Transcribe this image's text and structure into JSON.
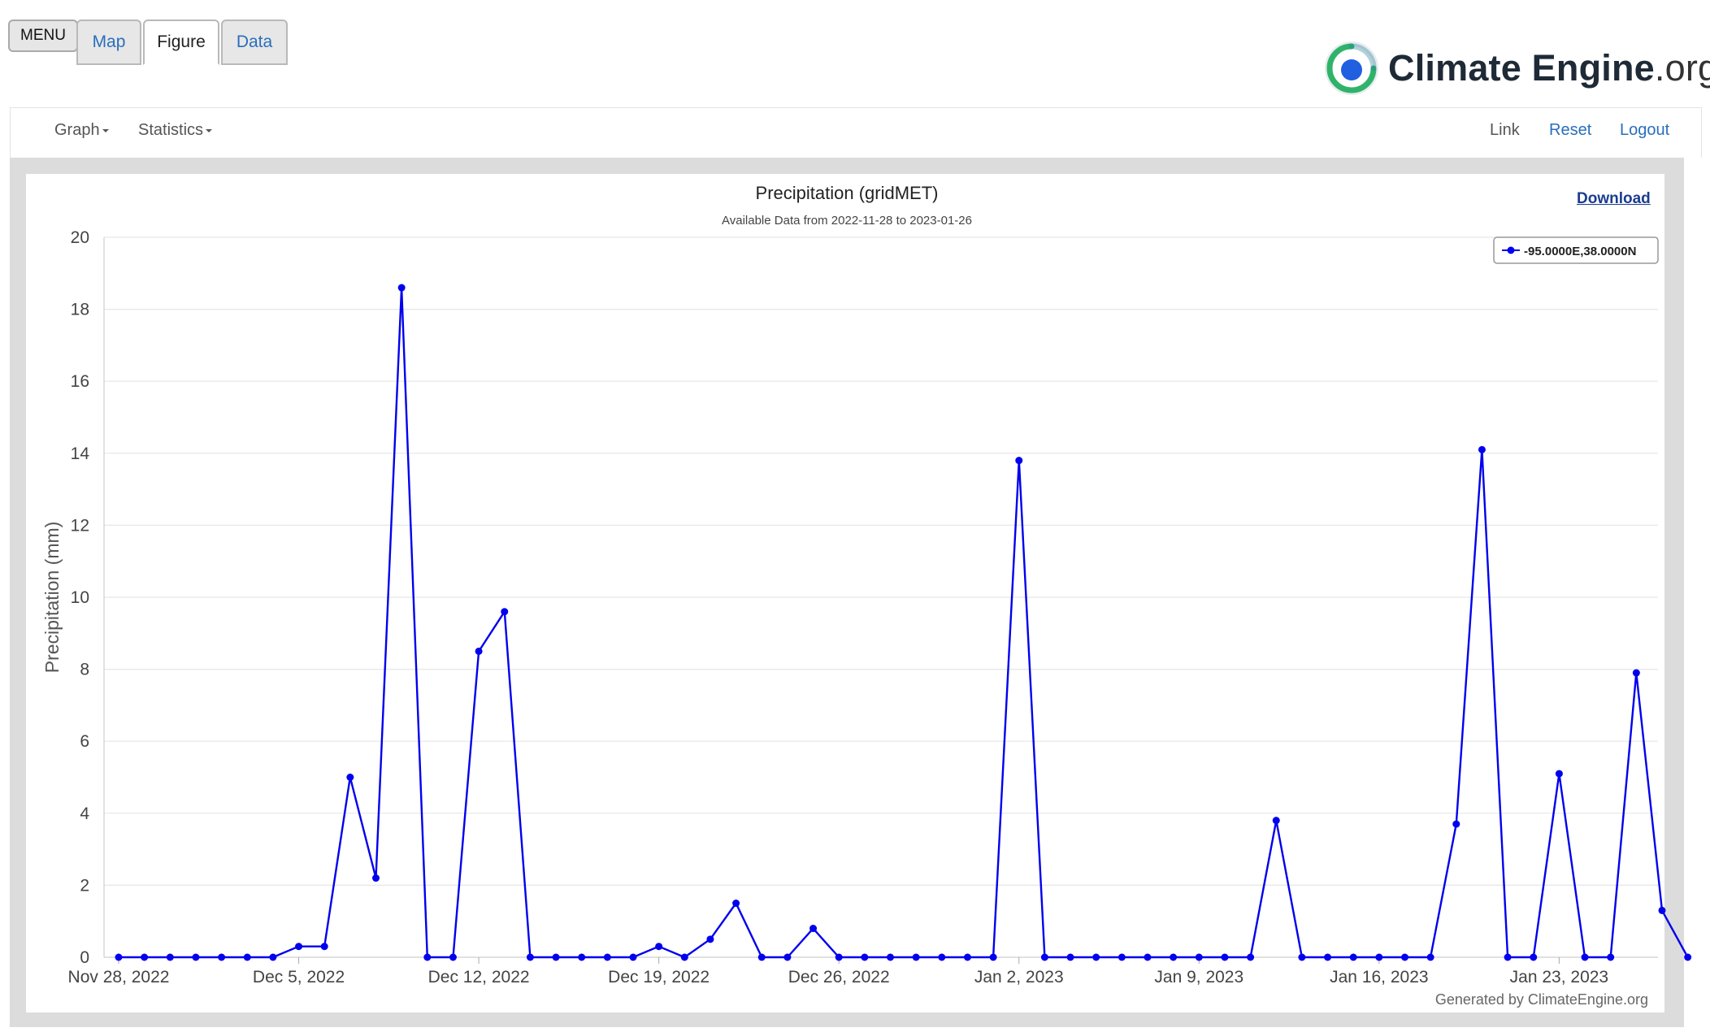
{
  "toolbar": {
    "menu_label": "MENU",
    "tabs": [
      {
        "label": "Map",
        "active": false
      },
      {
        "label": "Figure",
        "active": true
      },
      {
        "label": "Data",
        "active": false
      }
    ]
  },
  "logo": {
    "word1": "Climate",
    "word2": "Engine",
    "suffix": ".org",
    "colors": {
      "ring_green": "#2fb36a",
      "ring_teal": "#1f7f9a",
      "dot_blue": "#1f5fe0"
    }
  },
  "navbar": {
    "graph_label": "Graph",
    "statistics_label": "Statistics",
    "link_label": "Link",
    "reset_label": "Reset",
    "logout_label": "Logout"
  },
  "download_label": "Download",
  "chart_data": {
    "type": "line",
    "title": "Precipitation (gridMET)",
    "subtitle": "Available Data from 2022-11-28 to 2023-01-26",
    "ylabel": "Precipitation (mm)",
    "xlabel": "",
    "ylim": [
      0,
      20
    ],
    "yticks": [
      0,
      2,
      4,
      6,
      8,
      10,
      12,
      14,
      16,
      18,
      20
    ],
    "x_start": "2022-11-28",
    "x_end": "2023-01-26",
    "xtick_labels": [
      "Nov 28, 2022",
      "Dec 5, 2022",
      "Dec 12, 2022",
      "Dec 19, 2022",
      "Dec 26, 2022",
      "Jan 2, 2023",
      "Jan 9, 2023",
      "Jan 16, 2023",
      "Jan 23, 2023"
    ],
    "grid": true,
    "legend_position": "top-right",
    "credit": "Generated by ClimateEngine.org",
    "series": [
      {
        "name": "-95.0000E,38.0000N",
        "color": "#0000ee",
        "values": [
          0,
          0,
          0,
          0,
          0,
          0,
          0,
          0.3,
          0.3,
          5.0,
          2.2,
          18.6,
          0,
          0,
          8.5,
          9.6,
          0,
          0,
          0,
          0,
          0,
          0.3,
          0,
          0.5,
          1.5,
          0,
          0,
          0.8,
          0,
          0,
          0,
          0,
          0,
          0,
          0,
          13.8,
          0,
          0,
          0,
          0,
          0,
          0,
          0,
          0,
          0,
          3.8,
          0,
          0,
          0,
          0,
          0,
          0,
          3.7,
          14.1,
          0,
          0,
          5.1,
          0,
          0,
          7.9,
          1.3,
          0
        ]
      }
    ]
  }
}
